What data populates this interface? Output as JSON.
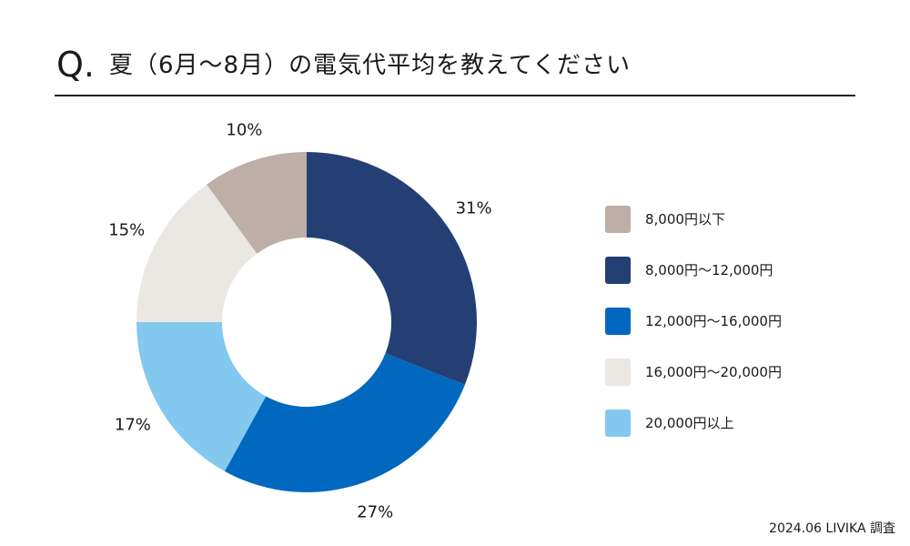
{
  "header": {
    "q_mark": "Q.",
    "title": "夏（6月〜8月）の電気代平均を教えてください"
  },
  "chart_data": {
    "type": "pie",
    "title": "夏（6月〜8月）の電気代平均を教えてください",
    "categories": [
      "8,000円以下",
      "8,000円〜12,000円",
      "12,000円〜16,000円",
      "16,000円〜20,000円",
      "20,000円以上"
    ],
    "values": [
      10,
      31,
      27,
      15,
      17
    ],
    "labels": [
      "10%",
      "31%",
      "27%",
      "15%",
      "17%"
    ],
    "colors": [
      "#bdaea7",
      "#243f73",
      "#0068bf",
      "#ebe7e3",
      "#83c8ef"
    ],
    "plot_order": [
      1,
      2,
      4,
      3,
      0
    ],
    "legend_position": "right"
  },
  "source": "2024.06 LIVIKA 調査"
}
